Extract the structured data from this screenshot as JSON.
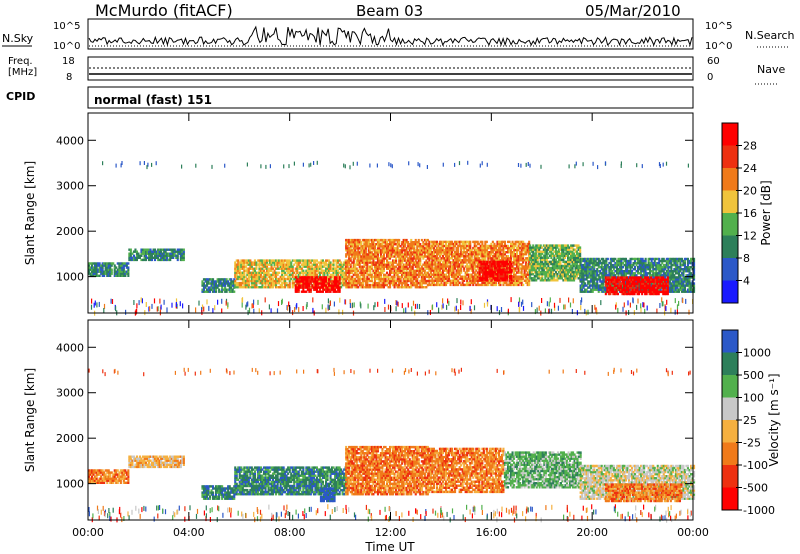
{
  "header": {
    "station": "McMurdo (fitACF)",
    "beam": "Beam 03",
    "date": "05/Mar/2010"
  },
  "strip": {
    "nsky_label": "N.Sky",
    "nsearch_label": "N.Search",
    "freq_label_line1": "Freq.",
    "freq_label_line2": "[MHz]",
    "nave_label": "Nave",
    "cpid_label": "CPID",
    "cpid_value": "normal (fast) 151",
    "noise_ticks_left": [
      "10^5",
      "10^0"
    ],
    "noise_ticks_right": [
      "10^5",
      "10^0"
    ],
    "freq_ticks": [
      "18",
      "8"
    ],
    "nave_ticks": [
      "60",
      "0"
    ]
  },
  "colors": {
    "power": [
      "#1a1aff",
      "#2b58c8",
      "#2d7f5a",
      "#52b04d",
      "#f0c43c",
      "#f07a1a",
      "#ee3010",
      "#ff0000"
    ],
    "velocity": [
      "#ff0000",
      "#ee3010",
      "#f07a1a",
      "#f5b040",
      "#c8c8c8",
      "#52b04d",
      "#2d7f5a",
      "#2b58c8"
    ]
  },
  "chart_data": [
    {
      "type": "heatmap",
      "name": "power",
      "ylabel": "Slant Range [km]",
      "xlabel": "Time UT",
      "xlim": [
        0,
        24
      ],
      "ylim": [
        200,
        4600
      ],
      "x_ticks": [
        "00:00",
        "04:00",
        "08:00",
        "12:00",
        "16:00",
        "20:00",
        "00:00"
      ],
      "y_ticks": [
        "1000",
        "2000",
        "3000",
        "4000"
      ],
      "colorbar": {
        "label": "Power [dB]",
        "ticks": [
          "4",
          "8",
          "12",
          "16",
          "20",
          "24",
          "28"
        ]
      },
      "bands": [
        {
          "t0": 0.0,
          "t1": 1.6,
          "r0": 1000,
          "r1": 1300,
          "level": 2
        },
        {
          "t0": 1.6,
          "t1": 3.8,
          "r0": 1350,
          "r1": 1600,
          "level": 2
        },
        {
          "t0": 4.5,
          "t1": 5.8,
          "r0": 650,
          "r1": 950,
          "level": 2
        },
        {
          "t0": 5.8,
          "t1": 10.2,
          "r0": 750,
          "r1": 1350,
          "level": 4
        },
        {
          "t0": 8.2,
          "t1": 10.0,
          "r0": 650,
          "r1": 1000,
          "level": 7
        },
        {
          "t0": 10.2,
          "t1": 13.5,
          "r0": 750,
          "r1": 1800,
          "level": 5
        },
        {
          "t0": 13.5,
          "t1": 17.5,
          "r0": 800,
          "r1": 1750,
          "level": 5
        },
        {
          "t0": 15.5,
          "t1": 16.8,
          "r0": 900,
          "r1": 1350,
          "level": 7
        },
        {
          "t0": 17.5,
          "t1": 19.5,
          "r0": 900,
          "r1": 1700,
          "level": 3
        },
        {
          "t0": 19.5,
          "t1": 24.0,
          "r0": 650,
          "r1": 1400,
          "level": 2
        },
        {
          "t0": 20.5,
          "t1": 23.0,
          "r0": 600,
          "r1": 1000,
          "level": 7
        }
      ]
    },
    {
      "type": "heatmap",
      "name": "velocity",
      "ylabel": "Slant Range [km]",
      "xlabel": "Time UT",
      "xlim": [
        0,
        24
      ],
      "ylim": [
        200,
        4600
      ],
      "x_ticks": [
        "00:00",
        "04:00",
        "08:00",
        "12:00",
        "16:00",
        "20:00",
        "00:00"
      ],
      "y_ticks": [
        "1000",
        "2000",
        "3000",
        "4000"
      ],
      "colorbar": {
        "label": "Velocity [m s⁻¹]",
        "ticks": [
          "1000",
          "500",
          "100",
          "25",
          "-25",
          "-100",
          "-500",
          "-1000"
        ]
      },
      "bands": [
        {
          "t0": 0.0,
          "t1": 1.6,
          "r0": 1000,
          "r1": 1300,
          "level": 2
        },
        {
          "t0": 1.6,
          "t1": 3.8,
          "r0": 1350,
          "r1": 1600,
          "level": 3
        },
        {
          "t0": 4.5,
          "t1": 5.8,
          "r0": 650,
          "r1": 950,
          "level": 6
        },
        {
          "t0": 5.8,
          "t1": 10.2,
          "r0": 750,
          "r1": 1350,
          "level": 6
        },
        {
          "t0": 9.2,
          "t1": 9.8,
          "r0": 600,
          "r1": 900,
          "level": 7
        },
        {
          "t0": 10.2,
          "t1": 13.5,
          "r0": 750,
          "r1": 1800,
          "level": 2
        },
        {
          "t0": 13.5,
          "t1": 16.5,
          "r0": 800,
          "r1": 1750,
          "level": 2
        },
        {
          "t0": 16.5,
          "t1": 19.5,
          "r0": 900,
          "r1": 1700,
          "level": 5
        },
        {
          "t0": 19.5,
          "t1": 24.0,
          "r0": 650,
          "r1": 1400,
          "level": 4
        },
        {
          "t0": 20.5,
          "t1": 23.5,
          "r0": 600,
          "r1": 1000,
          "level": 2
        }
      ]
    }
  ]
}
